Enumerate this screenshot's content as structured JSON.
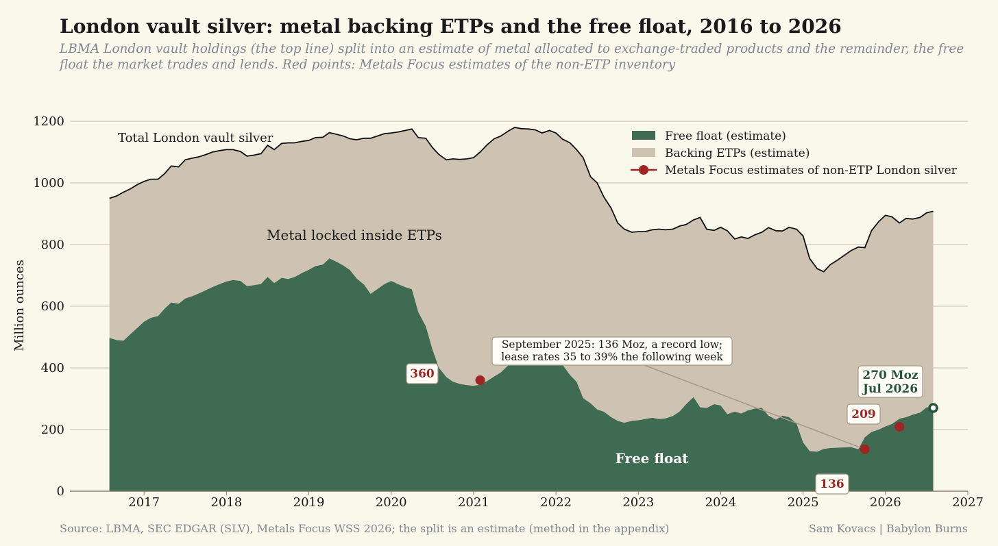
{
  "title": "London vault silver: metal backing ETPs and the free float, 2016 to 2026",
  "subtitle": "LBMA London vault holdings (the top line) split into an estimate of metal allocated to exchange-traded products and the remainder, the free float the market trades and lends. Red points: Metals Focus estimates of the non-ETP inventory",
  "source": "Source: LBMA, SEC EDGAR (SLV), Metals Focus WSS 2026; the split is an estimate (method in the appendix)",
  "credit": "Sam Kovacs | Babylon Burns",
  "colors": {
    "free_float": "#3f6b52",
    "backing": "#cec3b2",
    "total_line": "#111111",
    "red": "#a02424",
    "green_text": "#24563a",
    "grid": "#cfc8b2",
    "background": "#faf7eb"
  },
  "chart_data": {
    "type": "area",
    "ylabel": "Million ounces",
    "xlim": [
      2016.1,
      2027.0
    ],
    "ylim": [
      0,
      1300
    ],
    "yticks": [
      0,
      200,
      400,
      600,
      800,
      1000,
      1200
    ],
    "xticks": [
      2017,
      2018,
      2019,
      2020,
      2021,
      2022,
      2023,
      2024,
      2025,
      2026,
      2027
    ],
    "grid": "horizontal",
    "legend_position": "top-right",
    "legend": [
      {
        "label": "Free float (estimate)",
        "kind": "area",
        "color": "#3f6b52"
      },
      {
        "label": "Backing ETPs (estimate)",
        "kind": "area",
        "color": "#cec3b2"
      },
      {
        "label": "Metals Focus estimates of non-ETP London silver",
        "kind": "line-marker",
        "color": "#a02424"
      }
    ],
    "x": [
      2016.58,
      2016.67,
      2016.75,
      2016.83,
      2016.92,
      2017.0,
      2017.08,
      2017.17,
      2017.25,
      2017.33,
      2017.42,
      2017.5,
      2017.58,
      2017.67,
      2017.75,
      2017.83,
      2017.92,
      2018.0,
      2018.08,
      2018.17,
      2018.25,
      2018.33,
      2018.42,
      2018.5,
      2018.58,
      2018.67,
      2018.75,
      2018.83,
      2018.92,
      2019.0,
      2019.08,
      2019.17,
      2019.25,
      2019.33,
      2019.42,
      2019.5,
      2019.58,
      2019.67,
      2019.75,
      2019.83,
      2019.92,
      2020.0,
      2020.08,
      2020.17,
      2020.25,
      2020.33,
      2020.42,
      2020.5,
      2020.58,
      2020.67,
      2020.75,
      2020.83,
      2020.92,
      2021.0,
      2021.08,
      2021.17,
      2021.25,
      2021.33,
      2021.42,
      2021.5,
      2021.58,
      2021.67,
      2021.75,
      2021.83,
      2021.92,
      2022.0,
      2022.08,
      2022.17,
      2022.25,
      2022.33,
      2022.42,
      2022.5,
      2022.58,
      2022.67,
      2022.75,
      2022.83,
      2022.92,
      2023.0,
      2023.08,
      2023.17,
      2023.25,
      2023.33,
      2023.42,
      2023.5,
      2023.58,
      2023.67,
      2023.75,
      2023.83,
      2023.92,
      2024.0,
      2024.08,
      2024.17,
      2024.25,
      2024.33,
      2024.42,
      2024.5,
      2024.58,
      2024.67,
      2024.75,
      2024.83,
      2024.92,
      2025.0,
      2025.08,
      2025.17,
      2025.25,
      2025.33,
      2025.42,
      2025.5,
      2025.58,
      2025.67,
      2025.75,
      2025.83,
      2025.92,
      2026.0,
      2026.08,
      2026.17,
      2026.25,
      2026.33,
      2026.42,
      2026.5,
      2026.58
    ],
    "series": [
      {
        "name": "Total London vault silver",
        "values": [
          950,
          958,
          970,
          980,
          995,
          1005,
          1012,
          1012,
          1030,
          1055,
          1052,
          1075,
          1080,
          1085,
          1092,
          1100,
          1105,
          1108,
          1108,
          1102,
          1087,
          1090,
          1095,
          1122,
          1108,
          1128,
          1130,
          1130,
          1135,
          1138,
          1147,
          1148,
          1163,
          1158,
          1152,
          1143,
          1140,
          1145,
          1145,
          1152,
          1160,
          1162,
          1165,
          1170,
          1175,
          1147,
          1145,
          1115,
          1092,
          1075,
          1078,
          1076,
          1078,
          1082,
          1100,
          1125,
          1143,
          1152,
          1168,
          1180,
          1176,
          1175,
          1172,
          1162,
          1170,
          1162,
          1142,
          1130,
          1108,
          1082,
          1020,
          1000,
          955,
          918,
          870,
          850,
          840,
          842,
          842,
          848,
          850,
          848,
          850,
          860,
          865,
          880,
          888,
          850,
          846,
          856,
          845,
          818,
          825,
          820,
          832,
          840,
          855,
          845,
          844,
          856,
          850,
          828,
          755,
          722,
          712,
          735,
          750,
          765,
          780,
          792,
          790,
          845,
          875,
          895,
          890,
          870,
          885,
          883,
          888,
          903,
          908
        ]
      },
      {
        "name": "Free float (estimate)",
        "values": [
          497,
          490,
          488,
          508,
          530,
          550,
          562,
          568,
          592,
          612,
          608,
          625,
          632,
          642,
          652,
          662,
          672,
          680,
          685,
          682,
          665,
          668,
          672,
          695,
          675,
          692,
          688,
          695,
          708,
          718,
          730,
          735,
          755,
          745,
          732,
          717,
          690,
          670,
          640,
          655,
          672,
          682,
          672,
          662,
          655,
          580,
          535,
          460,
          400,
          370,
          355,
          348,
          344,
          342,
          345,
          358,
          372,
          385,
          408,
          430,
          444,
          452,
          445,
          450,
          445,
          430,
          410,
          377,
          355,
          302,
          285,
          265,
          258,
          240,
          228,
          222,
          228,
          230,
          234,
          238,
          234,
          236,
          244,
          258,
          282,
          305,
          272,
          270,
          282,
          278,
          250,
          258,
          252,
          262,
          268,
          270,
          245,
          232,
          245,
          240,
          220,
          158,
          130,
          128,
          137,
          140,
          141,
          142,
          143,
          136,
          175,
          192,
          200,
          210,
          218,
          235,
          240,
          248,
          255,
          272,
          270
        ]
      },
      {
        "name": "Metals Focus estimates of non-ETP London silver",
        "x": [
          2021.08,
          2025.75,
          2026.17
        ],
        "values": [
          360,
          136,
          209
        ]
      }
    ],
    "annotations": {
      "total_label": "Total London vault silver",
      "etp_label": "Metal locked inside ETPs",
      "free_label": "Free float",
      "callout": {
        "line1": "September 2025: 136 Moz, a record low;",
        "line2": "lease rates 35 to 39% the following week",
        "x": 2025.75,
        "y": 136
      },
      "point_labels": [
        "360",
        "136",
        "209"
      ],
      "endpoint": {
        "line1": "270 Moz",
        "line2": "Jul 2026",
        "x": 2026.58,
        "y": 270
      }
    }
  }
}
